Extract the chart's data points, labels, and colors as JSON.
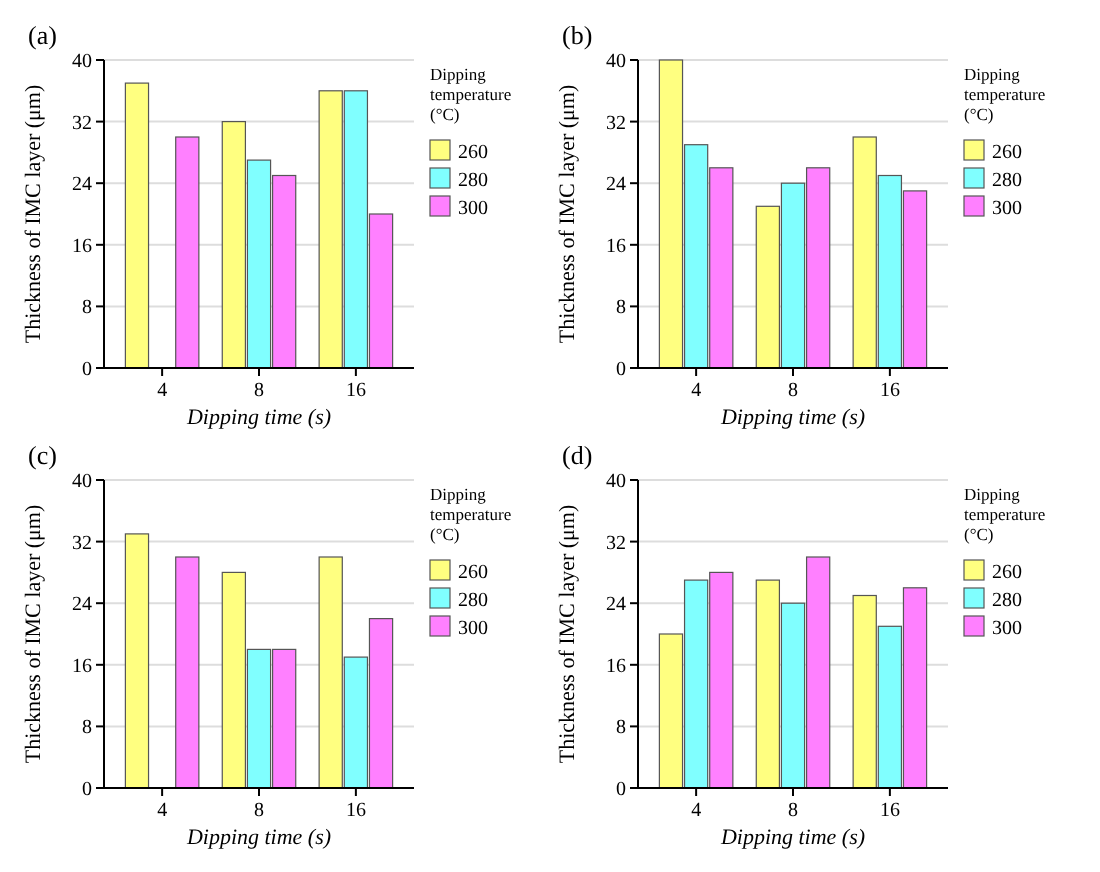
{
  "chart_data": [
    {
      "type": "bar",
      "title": "(a)",
      "xlabel": "Dipping time (s)",
      "ylabel": "Thickness of IMC layer (μm)",
      "legend_title": "Dipping temperature (°C)",
      "categories": [
        "4",
        "8",
        "16"
      ],
      "ylim": [
        0,
        40
      ],
      "yticks": [
        0,
        8,
        16,
        24,
        32,
        40
      ],
      "grid": "y",
      "legend": "right",
      "series": [
        {
          "name": "260",
          "color": "#ffff80",
          "values": [
            37,
            32,
            36
          ]
        },
        {
          "name": "280",
          "color": "#80ffff",
          "values": [
            null,
            27,
            36
          ]
        },
        {
          "name": "300",
          "color": "#ff80ff",
          "values": [
            30,
            25,
            20
          ]
        }
      ]
    },
    {
      "type": "bar",
      "title": "(b)",
      "xlabel": "Dipping time (s)",
      "ylabel": "Thickness of IMC layer (μm)",
      "legend_title": "Dipping temperature (°C)",
      "categories": [
        "4",
        "8",
        "16"
      ],
      "ylim": [
        0,
        40
      ],
      "yticks": [
        0,
        8,
        16,
        24,
        32,
        40
      ],
      "grid": "y",
      "legend": "right",
      "series": [
        {
          "name": "260",
          "color": "#ffff80",
          "values": [
            40,
            21,
            30
          ]
        },
        {
          "name": "280",
          "color": "#80ffff",
          "values": [
            29,
            24,
            25
          ]
        },
        {
          "name": "300",
          "color": "#ff80ff",
          "values": [
            26,
            26,
            23
          ]
        }
      ]
    },
    {
      "type": "bar",
      "title": "(c)",
      "xlabel": "Dipping time (s)",
      "ylabel": "Thickness of IMC layer (μm)",
      "legend_title": "Dipping temperature (°C)",
      "categories": [
        "4",
        "8",
        "16"
      ],
      "ylim": [
        0,
        40
      ],
      "yticks": [
        0,
        8,
        16,
        24,
        32,
        40
      ],
      "grid": "y",
      "legend": "right",
      "series": [
        {
          "name": "260",
          "color": "#ffff80",
          "values": [
            33,
            28,
            30
          ]
        },
        {
          "name": "280",
          "color": "#80ffff",
          "values": [
            null,
            18,
            17
          ]
        },
        {
          "name": "300",
          "color": "#ff80ff",
          "values": [
            30,
            18,
            22
          ]
        }
      ]
    },
    {
      "type": "bar",
      "title": "(d)",
      "xlabel": "Dipping time (s)",
      "ylabel": "Thickness of IMC layer (μm)",
      "legend_title": "Dipping temperature (°C)",
      "categories": [
        "4",
        "8",
        "16"
      ],
      "ylim": [
        0,
        40
      ],
      "yticks": [
        0,
        8,
        16,
        24,
        32,
        40
      ],
      "grid": "y",
      "legend": "right",
      "series": [
        {
          "name": "260",
          "color": "#ffff80",
          "values": [
            20,
            27,
            25
          ]
        },
        {
          "name": "280",
          "color": "#80ffff",
          "values": [
            27,
            24,
            21
          ]
        },
        {
          "name": "300",
          "color": "#ff80ff",
          "values": [
            28,
            30,
            26
          ]
        }
      ]
    }
  ]
}
